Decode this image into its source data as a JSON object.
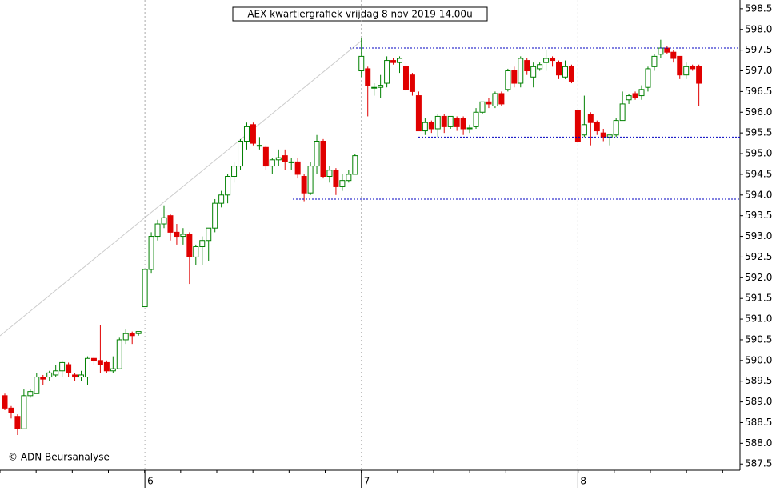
{
  "chart_data": {
    "type": "candlestick",
    "title": "AEX kwartiergrafiek vrijdag 8 nov 2019 14.00u",
    "credit": "© ADN Beursanalyse",
    "up_color": "#008000",
    "down_color": "#e00000",
    "level_color": "#0000c0",
    "ylim": [
      587.35,
      598.71
    ],
    "yticks": [
      {
        "value": 587.5,
        "label": "587.5"
      },
      {
        "value": 588,
        "label": "588.0"
      },
      {
        "value": 588.5,
        "label": "588.5"
      },
      {
        "value": 589,
        "label": "589.0"
      },
      {
        "value": 589.5,
        "label": "589.5"
      },
      {
        "value": 590,
        "label": "590.0"
      },
      {
        "value": 590.5,
        "label": "590.5"
      },
      {
        "value": 591,
        "label": "591.0"
      },
      {
        "value": 591.5,
        "label": "591.5"
      },
      {
        "value": 592,
        "label": "592.0"
      },
      {
        "value": 592.5,
        "label": "592.5"
      },
      {
        "value": 593,
        "label": "593.0"
      },
      {
        "value": 593.5,
        "label": "593.5"
      },
      {
        "value": 594,
        "label": "594.0"
      },
      {
        "value": 594.5,
        "label": "594.5"
      },
      {
        "value": 595,
        "label": "595.0"
      },
      {
        "value": 595.5,
        "label": "595.5"
      },
      {
        "value": 596,
        "label": "596.0"
      },
      {
        "value": 596.5,
        "label": "596.5"
      },
      {
        "value": 597,
        "label": "597.0"
      },
      {
        "value": 597.5,
        "label": "597.5"
      },
      {
        "value": 598,
        "label": "598.0"
      },
      {
        "value": 598.5,
        "label": "598.5"
      }
    ],
    "levels": [
      597.55,
      595.4,
      593.9
    ],
    "days": [
      {
        "label": null,
        "candles": [
          [
            589.15,
            589.2,
            588.8,
            588.85
          ],
          [
            588.85,
            588.9,
            588.6,
            588.75
          ],
          [
            588.65,
            588.7,
            588.2,
            588.35
          ],
          [
            588.35,
            589.3,
            588.35,
            589.15
          ],
          [
            589.15,
            589.3,
            589.1,
            589.25
          ],
          [
            589.2,
            589.7,
            589.2,
            589.6
          ],
          [
            589.6,
            589.65,
            589.4,
            589.55
          ],
          [
            589.6,
            589.75,
            589.5,
            589.7
          ],
          [
            589.65,
            589.9,
            589.6,
            589.75
          ],
          [
            589.75,
            590.0,
            589.6,
            589.95
          ],
          [
            589.9,
            589.95,
            589.6,
            589.7
          ],
          [
            589.65,
            589.7,
            589.5,
            589.6
          ],
          [
            589.6,
            589.75,
            589.5,
            589.65
          ],
          [
            589.6,
            590.1,
            589.4,
            590.05
          ],
          [
            590.05,
            590.1,
            589.9,
            590.0
          ],
          [
            590.0,
            590.85,
            589.7,
            589.9
          ],
          [
            589.95,
            590.0,
            589.7,
            589.75
          ],
          [
            589.75,
            590.1,
            589.7,
            589.8
          ],
          [
            589.8,
            590.55,
            589.8,
            590.5
          ],
          [
            590.5,
            590.75,
            590.4,
            590.65
          ],
          [
            590.65,
            590.7,
            590.4,
            590.6
          ],
          [
            590.65,
            590.7,
            590.6,
            590.7
          ]
        ]
      },
      {
        "label": "6",
        "candles": [
          [
            591.3,
            592.2,
            591.3,
            592.2
          ],
          [
            592.2,
            593.1,
            592.1,
            593.0
          ],
          [
            593.0,
            593.4,
            592.9,
            593.3
          ],
          [
            593.3,
            593.75,
            593.2,
            593.45
          ],
          [
            593.5,
            593.55,
            592.9,
            593.1
          ],
          [
            593.1,
            593.3,
            592.8,
            593.0
          ],
          [
            593.0,
            593.2,
            592.8,
            593.05
          ],
          [
            593.05,
            593.1,
            591.85,
            592.5
          ],
          [
            592.5,
            592.8,
            592.3,
            592.75
          ],
          [
            592.75,
            593.0,
            592.3,
            592.9
          ],
          [
            592.9,
            593.2,
            592.4,
            593.2
          ],
          [
            593.2,
            593.9,
            593.1,
            593.8
          ],
          [
            593.8,
            594.1,
            593.7,
            594.0
          ],
          [
            594.0,
            594.5,
            593.8,
            594.45
          ],
          [
            594.45,
            594.8,
            594.3,
            594.7
          ],
          [
            594.7,
            595.35,
            594.6,
            595.3
          ],
          [
            595.3,
            595.75,
            595.1,
            595.65
          ],
          [
            595.7,
            595.75,
            595.2,
            595.25
          ],
          [
            595.2,
            595.4,
            595.1,
            595.2
          ],
          [
            595.15,
            595.2,
            594.6,
            594.7
          ],
          [
            594.7,
            594.9,
            594.5,
            594.85
          ],
          [
            594.85,
            595.1,
            594.7,
            594.9
          ],
          [
            594.95,
            595.1,
            594.6,
            594.8
          ],
          [
            594.8,
            594.9,
            594.6,
            594.8
          ],
          [
            594.8,
            594.9,
            594.4,
            594.5
          ],
          [
            594.45,
            594.5,
            593.85,
            594.05
          ],
          [
            594.05,
            594.8,
            594.0,
            594.7
          ],
          [
            594.7,
            595.45,
            594.5,
            595.3
          ],
          [
            595.3,
            595.35,
            594.4,
            594.45
          ],
          [
            594.45,
            594.7,
            594.3,
            594.6
          ],
          [
            594.6,
            594.65,
            594.0,
            594.2
          ],
          [
            594.2,
            594.5,
            594.1,
            594.35
          ],
          [
            594.35,
            594.6,
            594.3,
            594.5
          ],
          [
            594.5,
            595.0,
            594.5,
            594.95
          ]
        ]
      },
      {
        "label": "7",
        "candles": [
          [
            597.0,
            597.8,
            596.85,
            597.35
          ],
          [
            597.05,
            597.1,
            595.9,
            596.65
          ],
          [
            596.6,
            596.7,
            596.4,
            596.6
          ],
          [
            596.6,
            596.9,
            596.35,
            596.65
          ],
          [
            596.7,
            597.35,
            596.6,
            597.25
          ],
          [
            597.25,
            597.3,
            597.15,
            597.2
          ],
          [
            597.2,
            597.35,
            596.95,
            597.3
          ],
          [
            597.1,
            597.2,
            596.5,
            596.55
          ],
          [
            596.9,
            596.95,
            596.4,
            596.5
          ],
          [
            596.4,
            596.5,
            595.55,
            595.55
          ],
          [
            595.55,
            595.85,
            595.45,
            595.75
          ],
          [
            595.75,
            595.8,
            595.5,
            595.6
          ],
          [
            595.6,
            595.95,
            595.4,
            595.9
          ],
          [
            595.9,
            595.95,
            595.5,
            595.65
          ],
          [
            595.65,
            595.9,
            595.6,
            595.9
          ],
          [
            595.85,
            595.9,
            595.55,
            595.65
          ],
          [
            595.85,
            595.9,
            595.45,
            595.6
          ],
          [
            595.6,
            595.7,
            595.5,
            595.62
          ],
          [
            595.65,
            596.1,
            595.6,
            596.0
          ],
          [
            596.0,
            596.25,
            595.95,
            596.25
          ],
          [
            596.25,
            596.35,
            596.1,
            596.2
          ],
          [
            596.15,
            596.5,
            596.1,
            596.45
          ],
          [
            596.45,
            596.5,
            596.15,
            596.2
          ],
          [
            596.55,
            597.05,
            596.5,
            597.0
          ],
          [
            597.0,
            597.1,
            596.6,
            596.7
          ],
          [
            596.7,
            597.35,
            596.6,
            597.3
          ],
          [
            597.25,
            597.3,
            596.9,
            597.0
          ],
          [
            596.85,
            597.2,
            596.6,
            597.1
          ],
          [
            597.05,
            597.2,
            597.0,
            597.15
          ],
          [
            597.2,
            597.5,
            597.0,
            597.3
          ],
          [
            597.3,
            597.35,
            597.1,
            597.25
          ],
          [
            597.2,
            597.25,
            596.8,
            596.9
          ],
          [
            596.85,
            597.25,
            596.8,
            597.1
          ],
          [
            597.1,
            597.15,
            596.7,
            596.75
          ]
        ]
      },
      {
        "label": "8",
        "candles": [
          [
            596.05,
            596.05,
            595.25,
            595.3
          ],
          [
            595.45,
            596.4,
            595.4,
            595.7
          ],
          [
            595.95,
            596.0,
            595.2,
            595.75
          ],
          [
            595.75,
            595.8,
            595.45,
            595.55
          ],
          [
            595.5,
            595.6,
            595.3,
            595.4
          ],
          [
            595.4,
            595.45,
            595.2,
            595.45
          ],
          [
            595.45,
            595.85,
            595.4,
            595.8
          ],
          [
            595.8,
            596.5,
            595.8,
            596.2
          ],
          [
            596.3,
            596.45,
            596.2,
            596.4
          ],
          [
            596.45,
            596.5,
            596.3,
            596.35
          ],
          [
            596.4,
            596.65,
            596.3,
            596.55
          ],
          [
            596.6,
            597.1,
            596.5,
            597.05
          ],
          [
            597.1,
            597.4,
            597.0,
            597.35
          ],
          [
            597.4,
            597.75,
            597.3,
            597.55
          ],
          [
            597.55,
            597.6,
            597.4,
            597.45
          ],
          [
            597.45,
            597.5,
            597.2,
            597.3
          ],
          [
            597.35,
            597.35,
            596.8,
            596.9
          ],
          [
            596.9,
            597.2,
            596.8,
            597.1
          ],
          [
            597.1,
            597.15,
            597.0,
            597.05
          ],
          [
            597.1,
            597.15,
            596.15,
            596.7
          ]
        ]
      }
    ]
  }
}
